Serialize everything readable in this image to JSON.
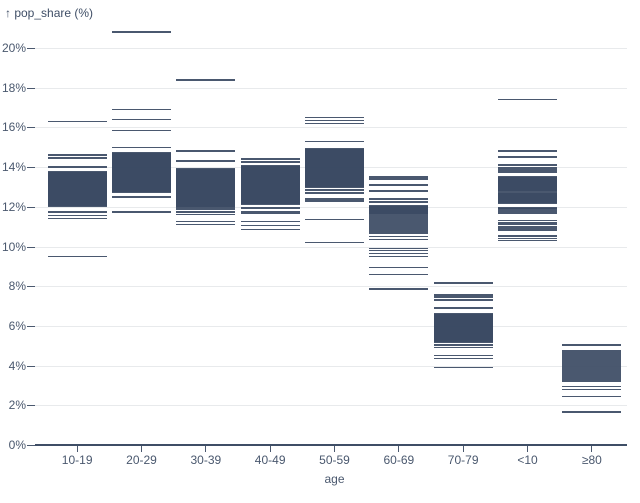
{
  "chart_data": {
    "type": "scatter",
    "mark": "tick",
    "title": "↑ pop_share (%)",
    "ylabel": "pop_share (%)",
    "xlabel": "age",
    "legend": "none",
    "grid": true,
    "ylim": [
      0,
      21.6
    ],
    "yticks": [
      0,
      2,
      4,
      6,
      8,
      10,
      12,
      14,
      16,
      18,
      20
    ],
    "ytick_labels": [
      "0%",
      "2%",
      "4%",
      "6%",
      "8%",
      "10%",
      "12%",
      "14%",
      "16%",
      "18%",
      "20%"
    ],
    "categories": [
      "10-19",
      "20-29",
      "30-39",
      "40-49",
      "50-59",
      "60-69",
      "70-79",
      "<10",
      "≥80"
    ],
    "colors": {
      "tick_mark": "#3b4a63",
      "axis_text": "#4a586e",
      "gridline": "#e8eaec",
      "baseline": "#3f4e66",
      "background": "#ffffff"
    },
    "series": [
      {
        "category": "10-19",
        "values": [
          9.5,
          11.4,
          11.55,
          11.75,
          12.05,
          12.1,
          12.15,
          12.2,
          12.25,
          12.3,
          12.35,
          12.4,
          12.45,
          12.5,
          12.55,
          12.6,
          12.65,
          12.7,
          12.75,
          12.8,
          12.85,
          12.9,
          12.95,
          13.0,
          13.05,
          13.1,
          13.15,
          13.2,
          13.25,
          13.3,
          13.35,
          13.4,
          13.45,
          13.5,
          13.55,
          13.6,
          13.65,
          13.7,
          13.75,
          14.0,
          14.45,
          14.6,
          16.3
        ]
      },
      {
        "category": "20-29",
        "values": [
          11.75,
          12.5,
          12.75,
          12.8,
          12.85,
          12.9,
          12.95,
          13.0,
          13.05,
          13.1,
          13.15,
          13.2,
          13.25,
          13.3,
          13.35,
          13.4,
          13.45,
          13.5,
          13.55,
          13.6,
          13.65,
          13.7,
          13.75,
          13.8,
          13.85,
          13.9,
          13.95,
          14.0,
          14.05,
          14.1,
          14.15,
          14.2,
          14.25,
          14.3,
          14.35,
          14.4,
          14.45,
          14.5,
          14.55,
          14.6,
          14.65,
          14.7,
          15.0,
          15.85,
          16.4,
          16.9,
          20.8
        ]
      },
      {
        "category": "30-39",
        "values": [
          11.1,
          11.25,
          11.6,
          11.75,
          11.9,
          12.0,
          12.05,
          12.1,
          12.15,
          12.2,
          12.25,
          12.3,
          12.35,
          12.4,
          12.45,
          12.5,
          12.55,
          12.6,
          12.65,
          12.7,
          12.75,
          12.8,
          12.85,
          12.9,
          12.95,
          13.0,
          13.05,
          13.1,
          13.15,
          13.2,
          13.25,
          13.3,
          13.35,
          13.4,
          13.45,
          13.5,
          13.55,
          13.6,
          13.65,
          13.7,
          13.75,
          13.8,
          13.85,
          13.9,
          14.3,
          14.8,
          18.4
        ]
      },
      {
        "category": "40-49",
        "values": [
          10.85,
          11.05,
          11.25,
          11.65,
          11.75,
          11.95,
          12.15,
          12.2,
          12.25,
          12.3,
          12.35,
          12.4,
          12.45,
          12.5,
          12.55,
          12.6,
          12.65,
          12.7,
          12.75,
          12.8,
          12.85,
          12.9,
          12.95,
          13.0,
          13.05,
          13.1,
          13.15,
          13.2,
          13.25,
          13.3,
          13.35,
          13.4,
          13.45,
          13.5,
          13.55,
          13.6,
          13.65,
          13.7,
          13.75,
          13.8,
          13.85,
          13.9,
          13.95,
          14.0,
          14.05,
          14.25,
          14.4
        ]
      },
      {
        "category": "50-59",
        "values": [
          10.2,
          11.35,
          12.3,
          12.4,
          12.7,
          12.85,
          13.0,
          13.05,
          13.1,
          13.15,
          13.2,
          13.25,
          13.3,
          13.35,
          13.4,
          13.45,
          13.5,
          13.55,
          13.6,
          13.65,
          13.7,
          13.75,
          13.8,
          13.85,
          13.9,
          13.95,
          14.0,
          14.05,
          14.1,
          14.15,
          14.2,
          14.25,
          14.3,
          14.35,
          14.4,
          14.45,
          14.5,
          14.55,
          14.6,
          14.65,
          14.7,
          14.75,
          14.8,
          14.85,
          14.9,
          15.3,
          16.2,
          16.35,
          16.5
        ]
      },
      {
        "category": "60-69",
        "values": [
          7.85,
          8.6,
          8.95,
          9.5,
          9.65,
          9.8,
          9.9,
          10.35,
          10.5,
          10.65,
          10.7,
          10.75,
          10.8,
          10.85,
          10.9,
          10.95,
          11.0,
          11.05,
          11.1,
          11.15,
          11.2,
          11.25,
          11.3,
          11.35,
          11.4,
          11.45,
          11.5,
          11.55,
          11.6,
          11.65,
          11.7,
          11.75,
          11.8,
          11.85,
          11.9,
          11.95,
          12.0,
          12.05,
          12.25,
          12.4,
          12.8,
          13.1,
          13.4,
          13.5
        ]
      },
      {
        "category": "70-79",
        "values": [
          3.9,
          4.35,
          4.5,
          4.9,
          5.05,
          5.2,
          5.25,
          5.3,
          5.35,
          5.4,
          5.45,
          5.5,
          5.55,
          5.6,
          5.65,
          5.7,
          5.75,
          5.8,
          5.85,
          5.9,
          5.95,
          6.0,
          6.05,
          6.1,
          6.15,
          6.2,
          6.25,
          6.3,
          6.35,
          6.4,
          6.45,
          6.5,
          6.55,
          6.6,
          6.9,
          7.3,
          7.45,
          7.55,
          8.15
        ]
      },
      {
        "category": "<10",
        "values": [
          10.3,
          10.4,
          10.5,
          10.55,
          10.8,
          10.85,
          10.9,
          10.95,
          11.0,
          11.1,
          11.15,
          11.2,
          11.3,
          11.7,
          11.8,
          11.9,
          11.95,
          12.2,
          12.25,
          12.3,
          12.35,
          12.4,
          12.45,
          12.5,
          12.55,
          12.6,
          12.65,
          12.7,
          12.8,
          12.85,
          12.9,
          12.95,
          13.0,
          13.05,
          13.1,
          13.15,
          13.2,
          13.25,
          13.3,
          13.35,
          13.4,
          13.45,
          13.5,
          13.75,
          13.85,
          13.95,
          14.1,
          14.5,
          14.8,
          17.4
        ]
      },
      {
        "category": "≥80",
        "values": [
          1.65,
          2.45,
          2.8,
          2.95,
          3.2,
          3.25,
          3.3,
          3.35,
          3.4,
          3.45,
          3.5,
          3.55,
          3.6,
          3.65,
          3.7,
          3.75,
          3.8,
          3.85,
          3.9,
          3.95,
          4.0,
          4.05,
          4.1,
          4.15,
          4.2,
          4.25,
          4.3,
          4.35,
          4.4,
          4.45,
          4.5,
          4.55,
          4.6,
          4.65,
          4.7,
          4.75,
          5.05
        ]
      }
    ]
  }
}
